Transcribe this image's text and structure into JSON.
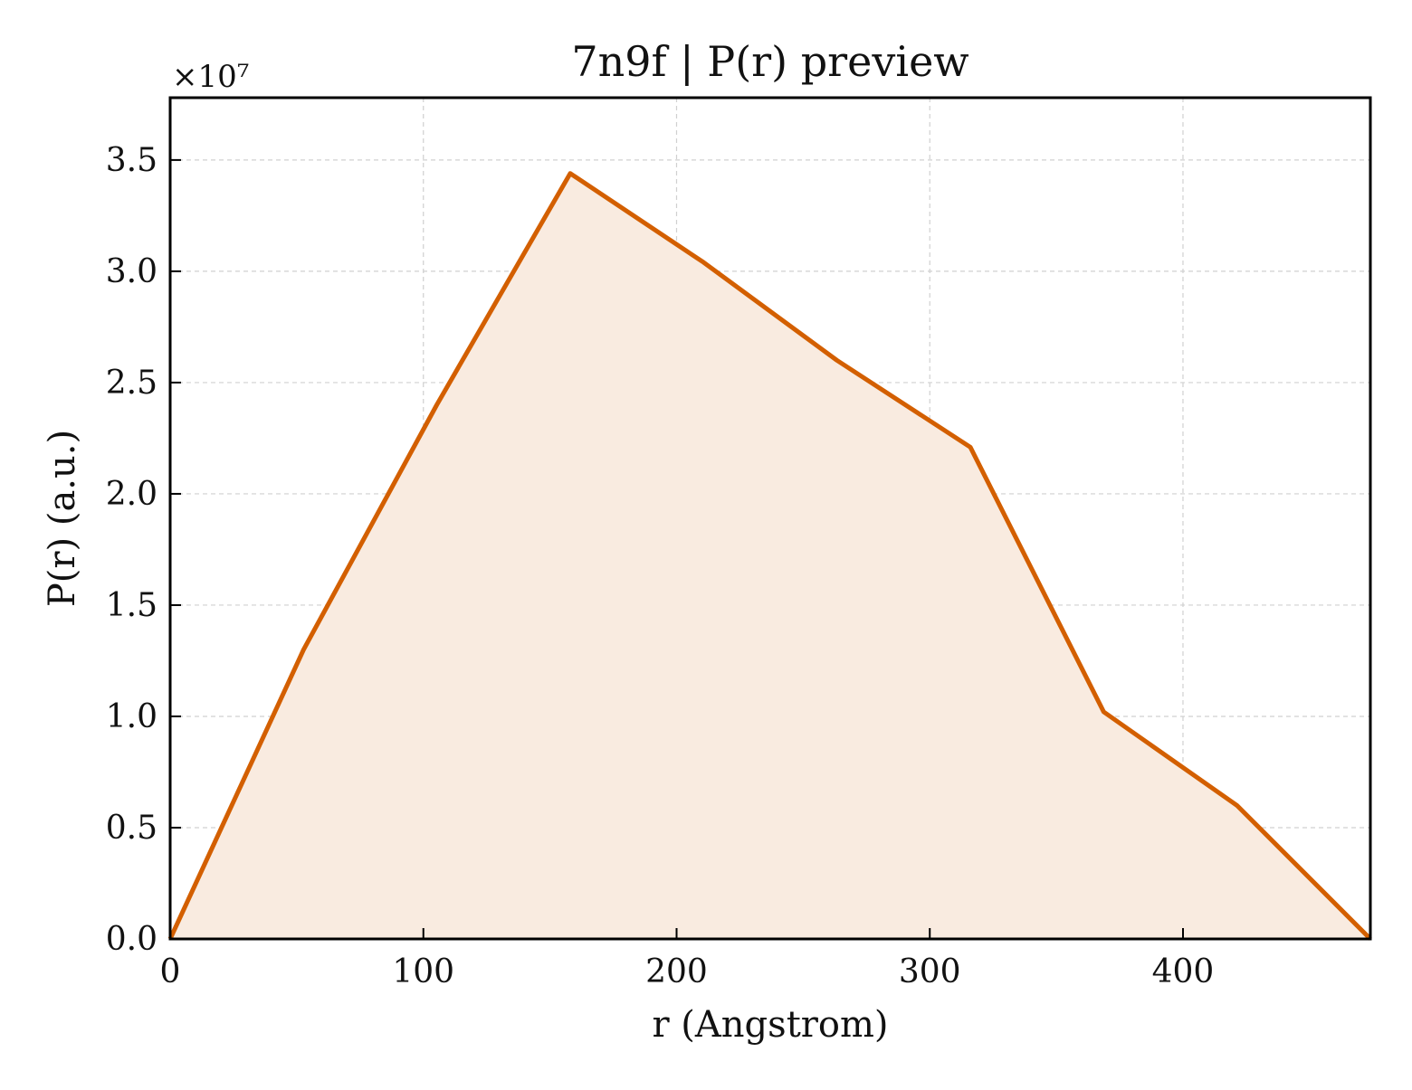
{
  "chart_data": {
    "type": "area",
    "title": "7n9f | P(r) preview",
    "xlabel": "r (Angstrom)",
    "ylabel": "P(r) (a.u.)",
    "y_offset_label": "×10⁷",
    "y_scale_factor": 10000000,
    "xlim": [
      0,
      474
    ],
    "ylim": [
      0,
      37800000
    ],
    "x_ticks": [
      0,
      100,
      200,
      300,
      400
    ],
    "y_ticks": [
      0,
      5000000,
      10000000,
      15000000,
      20000000,
      25000000,
      30000000,
      35000000
    ],
    "y_tick_labels": [
      "0.0",
      "0.5",
      "1.0",
      "1.5",
      "2.0",
      "2.5",
      "3.0",
      "3.5"
    ],
    "grid": true,
    "series": [
      {
        "x": [
          0,
          52.7,
          105.3,
          158,
          210.7,
          263.3,
          316,
          368.7,
          421.3,
          474
        ],
        "y": [
          0,
          13000000,
          24000000,
          34400000,
          30400000,
          26000000,
          22100000,
          10200000,
          6000000,
          0
        ]
      }
    ],
    "colors": {
      "line": "#d35f00",
      "fill": "#f9ebe0",
      "grid": "#d0d0d0"
    }
  }
}
